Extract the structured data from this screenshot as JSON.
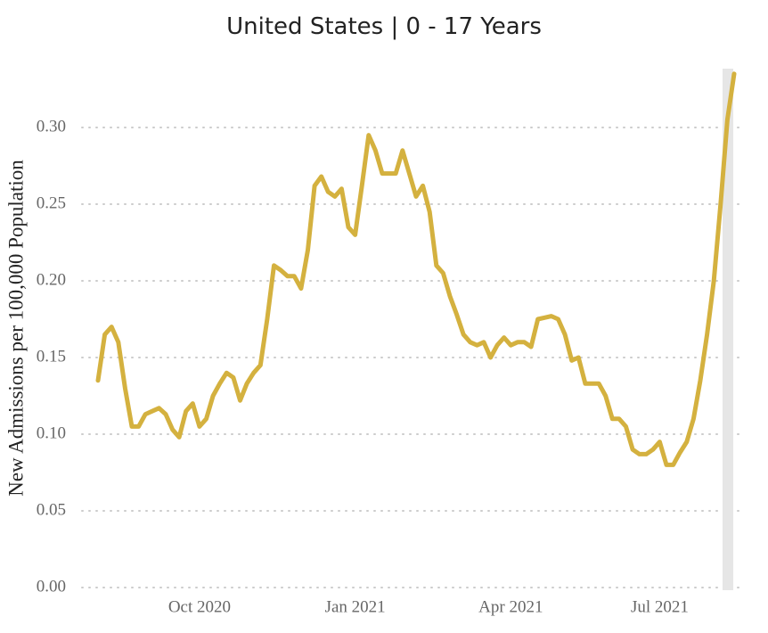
{
  "chart_data": {
    "type": "line",
    "title": "United States | 0 - 17 Years",
    "y_label": "New Admissions per 100,000 Population",
    "categories": [
      null,
      null,
      null,
      null,
      null,
      null,
      null,
      null,
      null,
      null,
      null,
      null,
      null,
      null,
      null,
      "Oct 2020",
      null,
      null,
      null,
      null,
      null,
      null,
      null,
      null,
      null,
      null,
      null,
      null,
      null,
      null,
      null,
      null,
      null,
      null,
      null,
      null,
      null,
      null,
      "Jan 2021",
      null,
      null,
      null,
      null,
      null,
      null,
      null,
      null,
      null,
      null,
      null,
      null,
      null,
      null,
      null,
      null,
      null,
      null,
      null,
      null,
      null,
      null,
      "Apr 2021",
      null,
      null,
      null,
      null,
      null,
      null,
      null,
      null,
      null,
      null,
      null,
      null,
      null,
      null,
      null,
      null,
      null,
      null,
      null,
      null,
      null,
      "Jul 2021",
      null,
      null,
      null,
      null,
      null,
      null,
      null,
      null,
      null,
      null,
      null
    ],
    "series": [
      {
        "name": "0 - 17 Years",
        "color": "#d4b13f",
        "values": [
          0.135,
          0.165,
          0.17,
          0.16,
          0.13,
          0.105,
          0.105,
          0.113,
          0.115,
          0.117,
          0.113,
          0.103,
          0.098,
          0.115,
          0.12,
          0.105,
          0.11,
          0.125,
          0.133,
          0.14,
          0.137,
          0.122,
          0.133,
          0.14,
          0.145,
          0.175,
          0.21,
          0.207,
          0.203,
          0.203,
          0.195,
          0.22,
          0.262,
          0.268,
          0.258,
          0.255,
          0.26,
          0.235,
          0.23,
          0.262,
          0.295,
          0.285,
          0.27,
          0.27,
          0.27,
          0.285,
          0.27,
          0.255,
          0.262,
          0.245,
          0.21,
          0.205,
          0.19,
          0.178,
          0.165,
          0.16,
          0.158,
          0.16,
          0.15,
          0.158,
          0.163,
          0.158,
          0.16,
          0.16,
          0.157,
          0.175,
          0.176,
          0.177,
          0.175,
          0.165,
          0.148,
          0.15,
          0.133,
          0.133,
          0.133,
          0.125,
          0.11,
          0.11,
          0.105,
          0.09,
          0.087,
          0.087,
          0.09,
          0.095,
          0.08,
          0.08,
          0.088,
          0.095,
          0.11,
          0.135,
          0.165,
          0.2,
          0.25,
          0.305,
          0.335
        ]
      }
    ],
    "ylim": [
      0,
      0.34
    ],
    "yticks": [
      {
        "value": 0,
        "label": "0.00"
      },
      {
        "value": 0.05,
        "label": "0.05"
      },
      {
        "value": 0.1,
        "label": "0.10"
      },
      {
        "value": 0.15,
        "label": "0.15"
      },
      {
        "value": 0.2,
        "label": "0.20"
      },
      {
        "value": 0.25,
        "label": "0.25"
      },
      {
        "value": 0.3,
        "label": "0.30"
      }
    ],
    "grid": true
  }
}
